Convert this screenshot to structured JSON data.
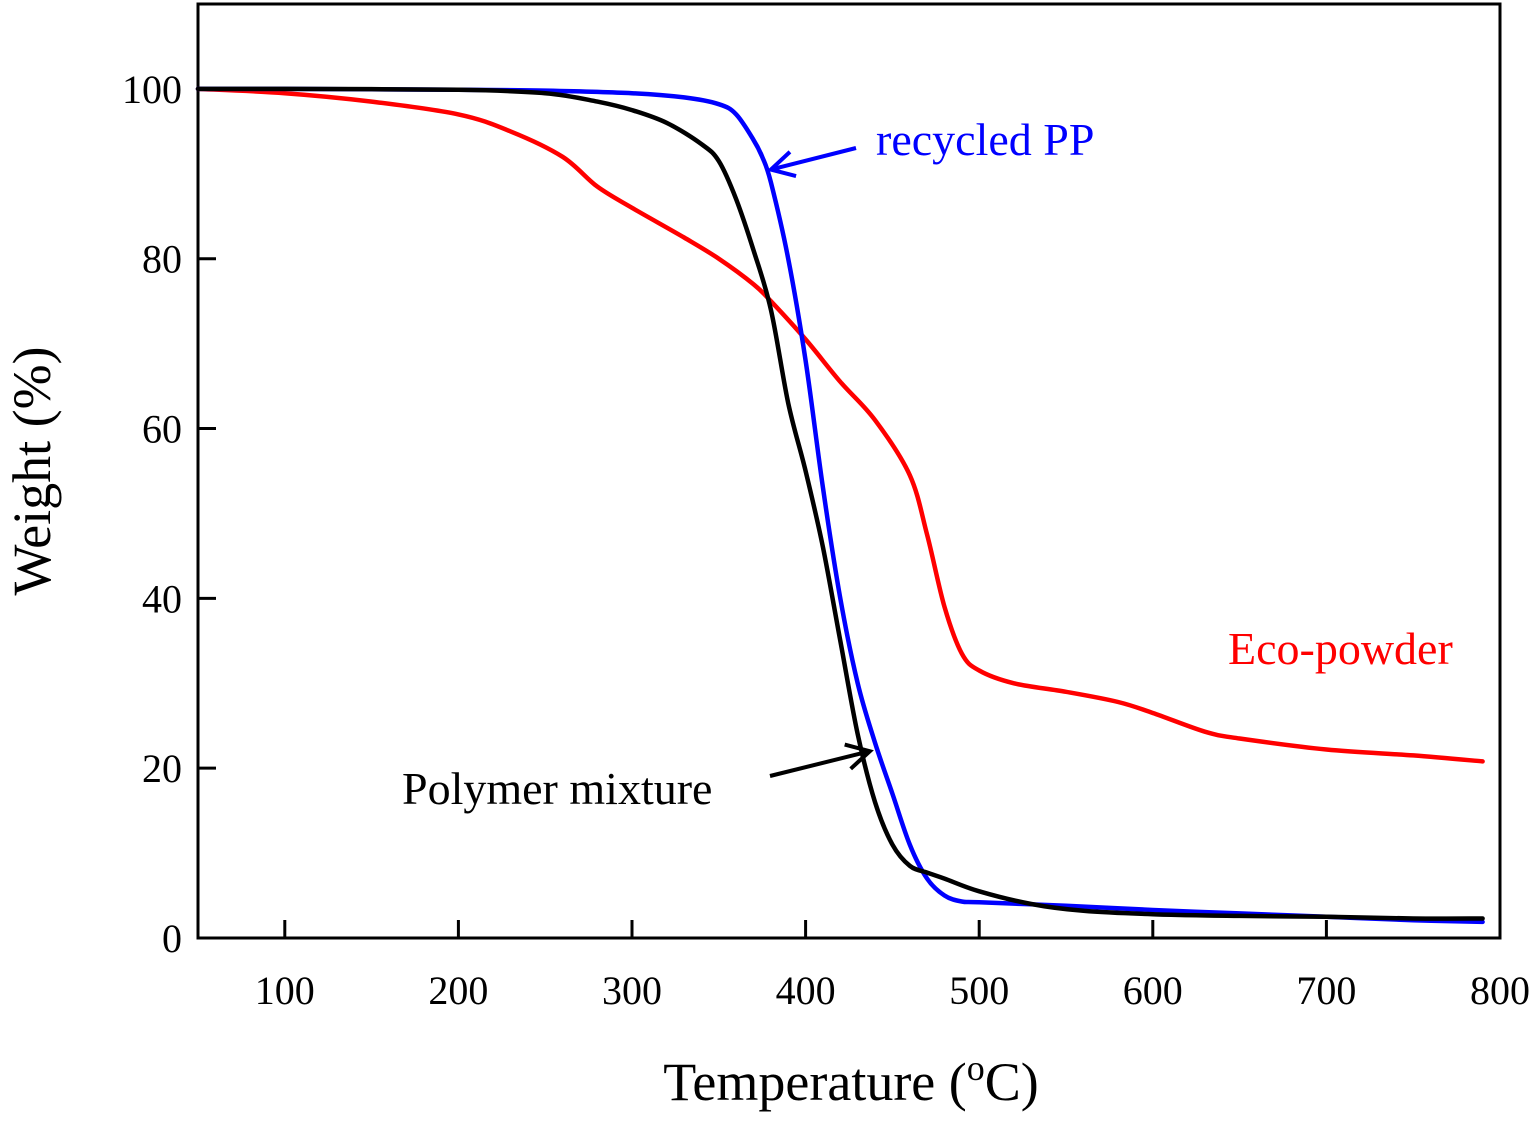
{
  "chart_data": {
    "type": "line",
    "title": "",
    "xlabel": "Temperature (",
    "xlabel_superscript": "o",
    "xlabel_unit": "C)",
    "ylabel": "Weight (%)",
    "xlim": [
      50,
      800
    ],
    "ylim": [
      0,
      110
    ],
    "x_ticks": [
      100,
      200,
      300,
      400,
      500,
      600,
      700,
      800
    ],
    "y_ticks": [
      0,
      20,
      40,
      60,
      80,
      100
    ],
    "grid": false,
    "series": [
      {
        "name": "Eco-powder",
        "color": "#ff0000",
        "x": [
          50,
          100,
          150,
          200,
          230,
          260,
          280,
          300,
          330,
          350,
          370,
          380,
          400,
          420,
          440,
          460,
          470,
          480,
          490,
          500,
          520,
          550,
          580,
          600,
          630,
          650,
          700,
          750,
          790
        ],
        "y": [
          100,
          99.5,
          98.5,
          97,
          95,
          92,
          88.5,
          86,
          82.5,
          80,
          77,
          75,
          70.5,
          65.5,
          61,
          54.5,
          47.5,
          39,
          33.5,
          31.5,
          30,
          29,
          27.8,
          26.5,
          24.3,
          23.5,
          22.2,
          21.5,
          20.8
        ]
      },
      {
        "name": "recycled PP",
        "color": "#0000ff",
        "x": [
          50,
          100,
          200,
          250,
          300,
          330,
          350,
          360,
          370,
          375,
          380,
          390,
          400,
          410,
          420,
          430,
          440,
          450,
          460,
          470,
          480,
          490,
          500,
          550,
          600,
          650,
          700,
          750,
          790
        ],
        "y": [
          100,
          100,
          99.9,
          99.8,
          99.5,
          99,
          98.2,
          97,
          94,
          92,
          89,
          80,
          68,
          53,
          40,
          30,
          23,
          17,
          11,
          7,
          5,
          4.3,
          4.2,
          3.8,
          3.3,
          2.9,
          2.5,
          2.1,
          1.9
        ]
      },
      {
        "name": "Polymer mixture",
        "color": "#000000",
        "x": [
          50,
          100,
          200,
          250,
          280,
          300,
          320,
          340,
          350,
          360,
          370,
          380,
          390,
          400,
          410,
          420,
          430,
          440,
          450,
          460,
          470,
          480,
          500,
          530,
          560,
          600,
          650,
          700,
          750,
          790
        ],
        "y": [
          100,
          100,
          99.9,
          99.5,
          98.5,
          97.5,
          96,
          93.5,
          91.5,
          87,
          81,
          74,
          63,
          55,
          46,
          35,
          24,
          16,
          11,
          8.5,
          7.7,
          7,
          5.5,
          4,
          3.2,
          2.8,
          2.6,
          2.5,
          2.3,
          2.3
        ]
      }
    ],
    "annotations": [
      {
        "text": "recycled PP",
        "series": "recycled PP",
        "color": "#0000ff",
        "arrow_to": [
          380,
          90.5
        ]
      },
      {
        "text": "Eco-powder",
        "series": "Eco-powder",
        "color": "#ff0000"
      },
      {
        "text": "Polymer mixture",
        "series": "Polymer mixture",
        "color": "#000000",
        "arrow_to": [
          437,
          22
        ]
      }
    ]
  }
}
